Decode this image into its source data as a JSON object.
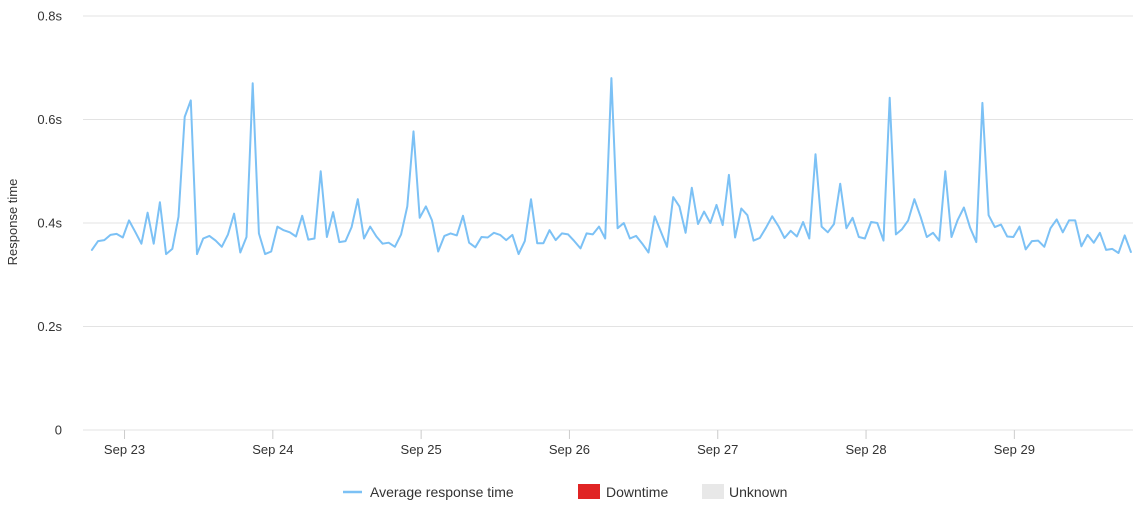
{
  "chart_data": {
    "type": "line",
    "ylabel": "Response time",
    "xlabel": "",
    "ylim": [
      0,
      0.8
    ],
    "y_ticks": [
      {
        "value": 0,
        "label": "0"
      },
      {
        "value": 0.2,
        "label": "0.2s"
      },
      {
        "value": 0.4,
        "label": "0.4s"
      },
      {
        "value": 0.6,
        "label": "0.6s"
      },
      {
        "value": 0.8,
        "label": "0.8s"
      }
    ],
    "x_unit": "days since Sep 22 00:00",
    "xlim": [
      22.72,
      29.8
    ],
    "x_ticks": [
      {
        "value": 23,
        "label": "Sep 23"
      },
      {
        "value": 24,
        "label": "Sep 24"
      },
      {
        "value": 25,
        "label": "Sep 25"
      },
      {
        "value": 26,
        "label": "Sep 26"
      },
      {
        "value": 27,
        "label": "Sep 27"
      },
      {
        "value": 28,
        "label": "Sep 28"
      },
      {
        "value": 29,
        "label": "Sep 29"
      }
    ],
    "grid": true,
    "series": [
      {
        "name": "Average response time",
        "color": "#7cc1f5",
        "start": 22.78,
        "step": 0.0417,
        "values": [
          0.348,
          0.365,
          0.367,
          0.377,
          0.379,
          0.372,
          0.405,
          0.383,
          0.36,
          0.42,
          0.36,
          0.44,
          0.34,
          0.35,
          0.412,
          0.605,
          0.637,
          0.34,
          0.37,
          0.375,
          0.366,
          0.354,
          0.378,
          0.418,
          0.343,
          0.373,
          0.67,
          0.38,
          0.34,
          0.345,
          0.393,
          0.386,
          0.382,
          0.374,
          0.414,
          0.368,
          0.37,
          0.5,
          0.373,
          0.421,
          0.363,
          0.365,
          0.392,
          0.446,
          0.37,
          0.393,
          0.374,
          0.36,
          0.362,
          0.354,
          0.378,
          0.432,
          0.577,
          0.41,
          0.432,
          0.405,
          0.345,
          0.375,
          0.38,
          0.376,
          0.414,
          0.362,
          0.353,
          0.373,
          0.372,
          0.381,
          0.377,
          0.367,
          0.377,
          0.34,
          0.365,
          0.446,
          0.361,
          0.361,
          0.386,
          0.367,
          0.38,
          0.378,
          0.365,
          0.351,
          0.38,
          0.378,
          0.393,
          0.37,
          0.68,
          0.39,
          0.4,
          0.37,
          0.375,
          0.36,
          0.343,
          0.413,
          0.383,
          0.354,
          0.45,
          0.432,
          0.381,
          0.468,
          0.398,
          0.422,
          0.4,
          0.435,
          0.396,
          0.493,
          0.372,
          0.428,
          0.415,
          0.366,
          0.371,
          0.391,
          0.413,
          0.394,
          0.371,
          0.385,
          0.374,
          0.402,
          0.37,
          0.533,
          0.393,
          0.382,
          0.398,
          0.476,
          0.39,
          0.41,
          0.373,
          0.37,
          0.402,
          0.4,
          0.366,
          0.642,
          0.378,
          0.388,
          0.405,
          0.446,
          0.412,
          0.373,
          0.381,
          0.366,
          0.5,
          0.373,
          0.406,
          0.43,
          0.391,
          0.363,
          0.632,
          0.415,
          0.392,
          0.397,
          0.374,
          0.373,
          0.393,
          0.349,
          0.365,
          0.366,
          0.354,
          0.39,
          0.407,
          0.382,
          0.405,
          0.405,
          0.355,
          0.377,
          0.362,
          0.381,
          0.348,
          0.35,
          0.342,
          0.376,
          0.344
        ]
      }
    ],
    "legend": {
      "position": "bottom-center",
      "items": [
        {
          "label": "Average response time",
          "color": "#7cc1f5",
          "swatch": "line"
        },
        {
          "label": "Downtime",
          "color": "#e02424",
          "swatch": "box"
        },
        {
          "label": "Unknown",
          "color": "#e8e8e8",
          "swatch": "box"
        }
      ]
    }
  }
}
